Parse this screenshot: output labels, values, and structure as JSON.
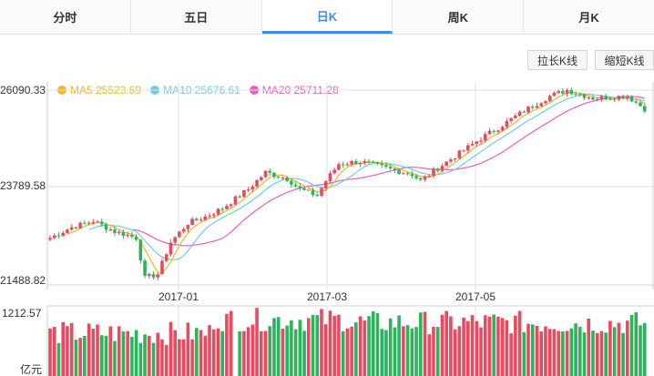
{
  "tabs": [
    {
      "label": "分时",
      "active": false
    },
    {
      "label": "五日",
      "active": false
    },
    {
      "label": "日K",
      "active": true
    },
    {
      "label": "周K",
      "active": false
    },
    {
      "label": "月K",
      "active": false
    }
  ],
  "buttons": {
    "longer": "拉长K线",
    "shorter": "缩短K线"
  },
  "legend": [
    {
      "label": "MA5 25523.69",
      "color": "#f5b527"
    },
    {
      "label": "MA10 25676.61",
      "color": "#6fcde8"
    },
    {
      "label": "MA20 25711.28",
      "color": "#e85fc9"
    }
  ],
  "colors": {
    "up": "#e84a5f",
    "down": "#2eb35c",
    "ma5": "#f5b527",
    "ma10": "#6fcde8",
    "ma20": "#e85fc9",
    "grid": "#e2e2e2"
  },
  "chart_data": {
    "type": "candlestick",
    "price_axis": {
      "ticks": [
        "26090.33",
        "23789.58",
        "21488.82"
      ],
      "max": 26090.33,
      "mid": 23789.58,
      "min": 21488.82
    },
    "x_axis": {
      "ticks": [
        {
          "label": "2017-01",
          "index": 23
        },
        {
          "label": "2017-03",
          "index": 59
        },
        {
          "label": "2017-05",
          "index": 95
        }
      ]
    },
    "volume_axis": {
      "top_label": "1212.57",
      "unit": "亿元",
      "max": 1212.57
    },
    "ohlc": [],
    "volume": [],
    "ma5": [],
    "ma10": [],
    "ma20": []
  }
}
